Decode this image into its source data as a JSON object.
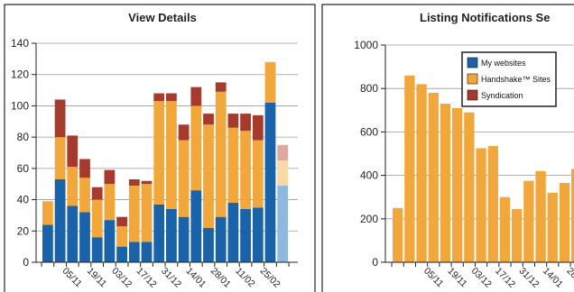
{
  "colors": {
    "my_websites": "#1a63a8",
    "handshake": "#f2a73c",
    "syndication": "#a63a2c",
    "forecast_blue": "#8fb8de",
    "forecast_orange": "#fbd9a6",
    "forecast_red": "#e0a8a0"
  },
  "chart_data": [
    {
      "type": "bar",
      "stacked": true,
      "title": "View Details",
      "ylim": [
        0,
        140
      ],
      "yticks": [
        0,
        20,
        40,
        60,
        80,
        100,
        120,
        140
      ],
      "grid": true,
      "x_tick_labels": [
        "05/11",
        "19/11",
        "03/12",
        "17/12",
        "31/12",
        "14/01",
        "28/01",
        "11/02",
        "25/02"
      ],
      "x_tick_bar_index": [
        1,
        3,
        5,
        7,
        9,
        11,
        13,
        15,
        17
      ],
      "series": [
        {
          "name": "My websites",
          "values": [
            24,
            53,
            36,
            32,
            16,
            27,
            10,
            13,
            13,
            37,
            34,
            29,
            46,
            22,
            29,
            38,
            34,
            35,
            102
          ]
        },
        {
          "name": "Handshake™ Sites",
          "values": [
            15,
            27,
            25,
            22,
            24,
            23,
            13,
            36,
            37,
            66,
            69,
            49,
            54,
            66,
            80,
            48,
            50,
            43,
            26
          ]
        },
        {
          "name": "Syndication",
          "values": [
            0,
            24,
            20,
            12,
            8,
            9,
            6,
            4,
            2,
            5,
            5,
            10,
            12,
            7,
            6,
            9,
            11,
            16,
            0
          ]
        }
      ],
      "forecast": {
        "values": [
          49,
          16,
          10
        ]
      }
    },
    {
      "type": "bar",
      "title": "Listing Notifications Se",
      "ylim": [
        0,
        1000
      ],
      "yticks": [
        0,
        200,
        400,
        600,
        800,
        1000
      ],
      "grid": true,
      "x_tick_labels": [
        "05/11",
        "19/11",
        "03/12",
        "17/12",
        "31/12",
        "14/01",
        "28/01"
      ],
      "x_tick_bar_index": [
        2,
        4,
        6,
        8,
        10,
        12,
        14
      ],
      "series": [
        {
          "name": "Handshake™ Sites",
          "values": [
            250,
            860,
            820,
            780,
            730,
            710,
            690,
            525,
            535,
            300,
            245,
            375,
            420,
            320,
            365,
            430
          ]
        }
      ]
    }
  ],
  "legend": {
    "items": [
      {
        "label": "My websites",
        "color": "#1a63a8"
      },
      {
        "label": "Handshake™ Sites",
        "color": "#f2a73c"
      },
      {
        "label": "Syndication",
        "color": "#a63a2c"
      }
    ]
  }
}
